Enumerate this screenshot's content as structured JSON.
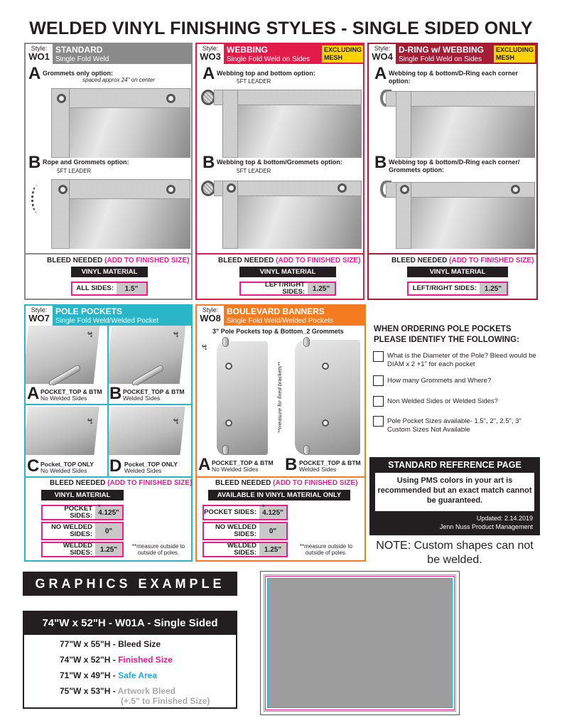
{
  "page_title": "WELDED VINYL FINISHING STYLES - SINGLE SIDED ONLY",
  "colors": {
    "standard": "#8a8a8a",
    "webbing": "#e21b4a",
    "dring": "#a31d35",
    "pole_pockets": "#29b6c9",
    "boulevard": "#f47b20",
    "pink": "#ec1c8c",
    "blue": "#27aae1",
    "yellow": "#ffd200"
  },
  "panels": {
    "w01": {
      "style_label": "Style:",
      "code": "WO1",
      "name": "STANDARD",
      "sub": "Single Fold Weld",
      "a_label": "Grommets only option:",
      "a_note": "spaced approx 24\" on center",
      "b_label": "Rope and Grommets option:",
      "b_leader": "5FT LEADER",
      "bleed_title": "BLEED NEEDED",
      "bleed_pink": "(ADD TO FINISHED SIZE)",
      "material": "VINYL MATERIAL",
      "row_label": "ALL SIDES:",
      "row_value": "1.5\""
    },
    "w03": {
      "style_label": "Style:",
      "code": "WO3",
      "name": "WEBBING",
      "sub": "Single Fold Weld on Sides",
      "excluding": "EXCLUDING MESH",
      "a_label": "Webbing top and bottom option:",
      "a_leader": "5FT LEADER",
      "b_label": "Webbing top & bottom/Grommets option:",
      "b_leader": "5FT LEADER",
      "bleed_title": "BLEED NEEDED",
      "bleed_pink": "(ADD TO FINISHED SIZE)",
      "material": "VINYL MATERIAL",
      "row_label": "LEFT/RIGHT SIDES:",
      "row_value": "1.25\""
    },
    "w04": {
      "style_label": "Style:",
      "code": "WO4",
      "name": "D-RING w/ WEBBING",
      "sub": "Single Fold Weld on Sides",
      "excluding": "EXCLUDING MESH",
      "a_label": "Webbing top & bottom/D-Ring each corner option:",
      "b_label": "Webbing top & bottom/D-Ring each corner/ Grommets option:",
      "bleed_title": "BLEED NEEDED",
      "bleed_pink": "(ADD TO FINISHED SIZE)",
      "material": "VINYL MATERIAL",
      "row_label": "LEFT/RIGHT SIDES:",
      "row_value": "1.25\""
    },
    "w07": {
      "style_label": "Style:",
      "code": "WO7",
      "name": "POLE POCKETS",
      "sub": "Single Fold Weld/Welded Pocket",
      "dim": "3\"",
      "a_l1": "POCKET_TOP & BTM",
      "a_l2": "No Welded Sides",
      "b_l1": "POCKET_TOP & BTM",
      "b_l2": "Welded Sides",
      "c_l1": "Pocket_TOP ONLY",
      "c_l2": "No Welded Sides",
      "d_l1": "Pocket_TOP ONLY",
      "d_l2": "Welded Sides",
      "bleed_title": "BLEED NEEDED",
      "bleed_pink": "(ADD TO FINISHED SIZE)",
      "material": "VINYL MATERIAL",
      "rows": [
        {
          "label": "POCKET SIDES:",
          "value": "4.125\"",
          "star": "*"
        },
        {
          "label": "NO WELDED SIDES:",
          "value": "0\"",
          "star": ""
        },
        {
          "label": "WELDED SIDES:",
          "value": "1.25\"",
          "star": ""
        }
      ],
      "measure_note": "**measure outside to outside of poles."
    },
    "w08": {
      "style_label": "Style:",
      "code": "WO8",
      "name": "BOULEVARD BANNERS",
      "sub": "Single Fold Weld/Welded Pockets",
      "top_note": "3\" Pole Pockets top & Bottom_2 Grommets",
      "dim": "3\"",
      "bracket_note": "**measure for fixed brackets**",
      "a_l1": "POCKET_TOP & BTM",
      "a_l2": "No Welded Sides",
      "b_l1": "POCKET_TOP & BTM",
      "b_l2": "Welded Sides",
      "bleed_title": "BLEED NEEDED",
      "bleed_pink": "(ADD TO FINISHED SIZE)",
      "material": "AVAILABLE IN VINYL MATERIAL ONLY",
      "rows": [
        {
          "label": "POCKET SIDES:",
          "value": "4.125\"",
          "star": "*"
        },
        {
          "label": "NO WELDED SIDES:",
          "value": "0\"",
          "star": ""
        },
        {
          "label": "WELDED SIDES:",
          "value": "1.25\"",
          "star": ""
        }
      ],
      "measure_note": "**measure outside to outside of poles."
    }
  },
  "pole_questions": {
    "title": "WHEN ORDERING POLE POCKETS PLEASE IDENTIFY THE FOLLOWING:",
    "items": [
      "What is the Diameter of the Pole? Bleed would be DIAM x 2 +1\" for each pocket",
      "How many Grommets and Where?",
      "Non Welded Sides or Welded Sides?",
      "Pole Pocket Sizes available- 1.5\", 2\", 2.5\", 3\" Custom Sizes Not Available"
    ]
  },
  "reference": {
    "title": "STANDARD REFERENCE PAGE",
    "body": "Using PMS colors in your art is recommended but an exact match cannot be guaranteed.",
    "updated": "Updated: 2.14.2019",
    "dept": "Jenn Nuss Product Management"
  },
  "note": "NOTE: Custom shapes can not be welded.",
  "graphics": {
    "title": "GRAPHICS EXAMPLE",
    "header": "74\"W x 52\"H - W01A - Single Sided",
    "lines": [
      {
        "size": "77\"W x 55\"H - ",
        "label": "Bleed Size",
        "color": "#231f20"
      },
      {
        "size": "74\"W x 52\"H - ",
        "label": "Finished Size",
        "color": "#ec1c8c"
      },
      {
        "size": "71\"W x 49\"H - ",
        "label": "Safe Area",
        "color": "#27aae1"
      },
      {
        "size": "75\"W x 53\"H - ",
        "label": "Artwork Bleed",
        "color": "#a8a8a8"
      }
    ],
    "artwork_sub": "(+.5\" to Finished Size)"
  },
  "letters": {
    "a": "A",
    "b": "B",
    "c": "C",
    "d": "D"
  }
}
